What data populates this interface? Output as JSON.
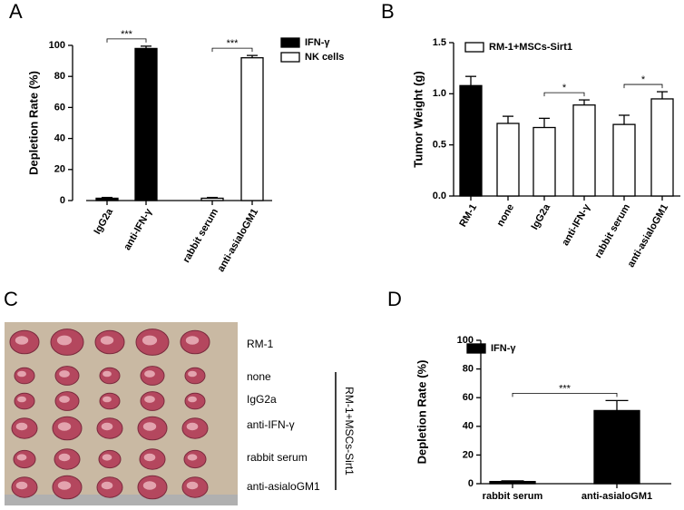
{
  "panel_labels": [
    "A",
    "B",
    "C",
    "D"
  ],
  "chart_data": [
    {
      "type": "bar",
      "ylabel": "Depletion Rate (%)",
      "categories": [
        "IgG2a",
        "anti-IFN-γ",
        "rabbit serum",
        "anti-asialoGM1"
      ],
      "series": [
        {
          "name": "IFN-γ",
          "color": "#000000",
          "values": [
            1.5,
            98,
            null,
            null
          ],
          "errors": [
            0.5,
            1.5,
            null,
            null
          ]
        },
        {
          "name": "NK cells",
          "color": "#ffffff",
          "values": [
            null,
            null,
            1.5,
            92
          ],
          "errors": [
            null,
            null,
            0.5,
            1.5
          ]
        }
      ],
      "ylim": [
        0,
        100
      ],
      "yticks": [
        0,
        20,
        40,
        60,
        80,
        100
      ],
      "significance": [
        {
          "from": 0,
          "to": 1,
          "label": "***"
        },
        {
          "from": 2,
          "to": 3,
          "label": "***"
        }
      ]
    },
    {
      "type": "bar",
      "ylabel": "Tumor Weight (g)",
      "categories": [
        "RM-1",
        "none",
        "IgG2a",
        "anti-IFN-γ",
        "rabbit serum",
        "anti-asialoGM1"
      ],
      "series": [
        {
          "color": "#000000",
          "values": [
            1.08,
            null,
            null,
            null,
            null,
            null
          ],
          "errors": [
            0.09,
            null,
            null,
            null,
            null,
            null
          ]
        },
        {
          "name": "RM-1+MSCs-Sirt1",
          "color": "#ffffff",
          "values": [
            null,
            0.71,
            0.67,
            0.89,
            0.7,
            0.95
          ],
          "errors": [
            null,
            0.07,
            0.09,
            0.05,
            0.09,
            0.07
          ]
        }
      ],
      "ylim": [
        0,
        1.5
      ],
      "yticks": [
        {
          "value": 0,
          "label": "0.0"
        },
        {
          "value": 0.5,
          "label": "0.5"
        },
        {
          "value": 1,
          "label": "1.0"
        },
        {
          "value": 1.5,
          "label": "1.5"
        }
      ],
      "significance": [
        {
          "from": 2,
          "to": 3,
          "label": "*"
        },
        {
          "from": 4,
          "to": 5,
          "label": "*"
        }
      ]
    },
    {
      "type": "bar",
      "ylabel": "Depletion Rate (%)",
      "categories": [
        "rabbit serum",
        "anti-asialoGM1"
      ],
      "series": [
        {
          "name": "IFN-γ",
          "color": "#000000",
          "values": [
            1.5,
            51
          ],
          "errors": [
            0.5,
            7
          ]
        }
      ],
      "ylim": [
        0,
        100
      ],
      "yticks": [
        0,
        20,
        40,
        60,
        80,
        100
      ],
      "significance": [
        {
          "from": 0,
          "to": 1,
          "label": "***"
        }
      ]
    }
  ],
  "tumor_photo": {
    "rows": [
      "RM-1",
      "none",
      "IgG2a",
      "anti-IFN-γ",
      "rabbit serum",
      "anti-asialoGM1"
    ],
    "group_label": "RM-1+MSCs-Sirt1"
  }
}
